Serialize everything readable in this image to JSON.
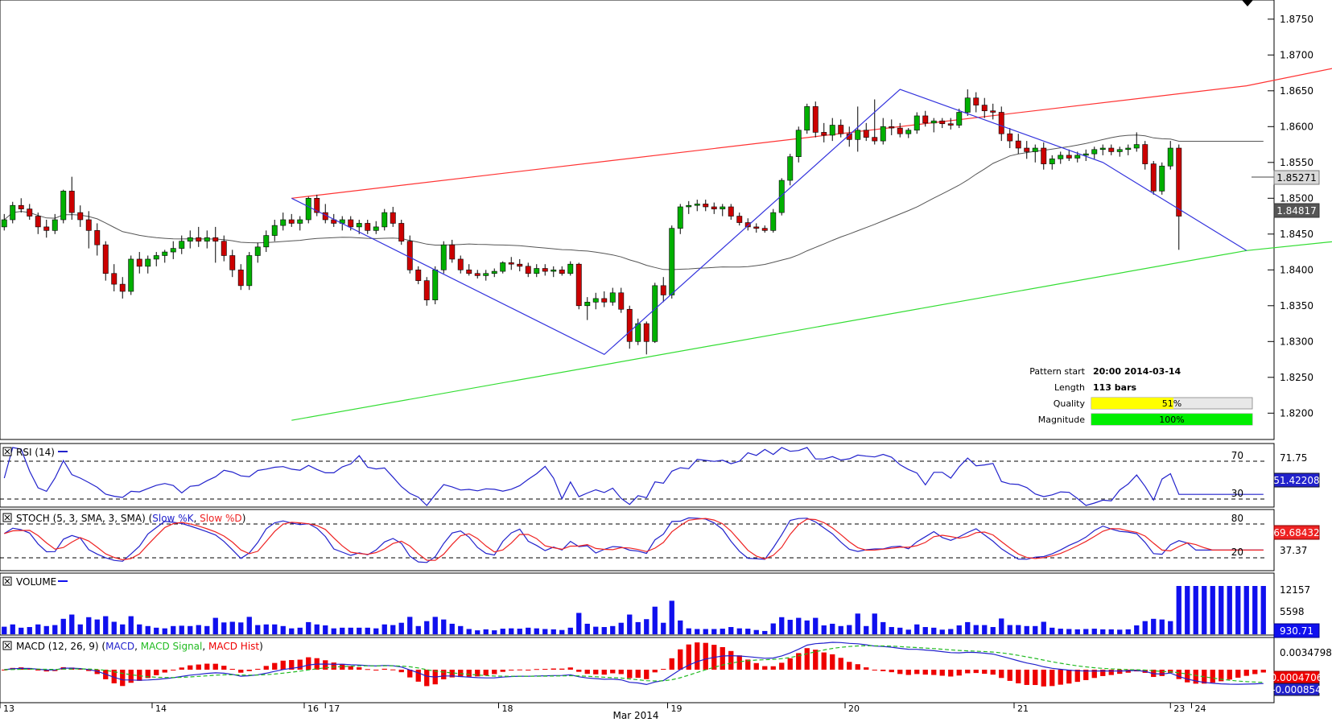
{
  "colors": {
    "up": "#00b000",
    "down": "#cc0000",
    "channel_upper": "#ff3333",
    "channel_lower": "#33dd33",
    "pattern": "#3333dd",
    "ma": "#555555",
    "rsi": "#2222cc",
    "stoch_k": "#2222cc",
    "stoch_d": "#ee2222",
    "volume": "#1010ee",
    "macd": "#2222cc",
    "macd_signal": "#22bb22",
    "macd_hist": "#ee0000",
    "quality_fill": "#ffff00",
    "magnitude_fill": "#00ee00"
  },
  "main": {
    "price_ticks": [
      "1.8750",
      "1.8700",
      "1.8650",
      "1.8600",
      "1.8550",
      "1.8500",
      "1.8450",
      "1.8400",
      "1.8350",
      "1.8300",
      "1.8250",
      "1.8200"
    ],
    "current_price": "1.85271",
    "ma_value": "1.84817",
    "channel": {
      "upper": [
        [
          0,
          1.85
        ],
        [
          113,
          1.8657
        ],
        [
          150,
          1.8745
        ]
      ],
      "lower": [
        [
          0,
          1.819
        ],
        [
          113,
          1.8427
        ],
        [
          150,
          1.8472
        ]
      ]
    },
    "pattern_points": [
      [
        0,
        1.85
      ],
      [
        37,
        1.8282
      ],
      [
        72,
        1.8652
      ],
      [
        96,
        1.855
      ],
      [
        113,
        1.8427
      ]
    ],
    "info": {
      "pattern_start_label": "Pattern start",
      "pattern_start_value": "20:00 2014-03-14",
      "length_label": "Length",
      "length_value": "113 bars",
      "quality_label": "Quality",
      "quality_value": "51%",
      "quality_pct": 51,
      "magnitude_label": "Magnitude",
      "magnitude_value": "100%",
      "magnitude_pct": 100
    }
  },
  "x_axis": {
    "labels": [
      {
        "bar": 0,
        "text": "13"
      },
      {
        "bar": 18,
        "text": "14"
      },
      {
        "bar": 36,
        "text": "16"
      },
      {
        "bar": 38.5,
        "text": "17"
      },
      {
        "bar": 59,
        "text": "18"
      },
      {
        "bar": 79,
        "text": "19"
      },
      {
        "bar": 100,
        "text": "20"
      },
      {
        "bar": 120,
        "text": "21"
      },
      {
        "bar": 138.5,
        "text": "23"
      },
      {
        "bar": 141,
        "text": "24"
      }
    ],
    "month_label": "Mar 2014"
  },
  "rsi": {
    "title": "RSI (14)",
    "level_high": "70",
    "level_low": "30",
    "tick_top": "71.75",
    "current": "51.42208"
  },
  "stoch": {
    "title": "STOCH (5, 3, SMA, 3, SMA)",
    "legend_k": "Slow %K",
    "legend_d": "Slow %D",
    "level_high": "80",
    "level_low": "20",
    "tick_mid": "37.37",
    "current": "69.68432"
  },
  "volume": {
    "title": "VOLUME",
    "tick_high": "12157",
    "tick_mid": "5598",
    "current": "930.71"
  },
  "macd": {
    "title": "MACD (12, 26, 9)",
    "legend_macd": "MACD",
    "legend_signal": "MACD Signal",
    "legend_hist": "MACD Hist",
    "tick_top": "0.0034798",
    "current_hist": "0.0004706",
    "current_macd": "-0.000854"
  },
  "chart_data": {
    "type": "candlestick",
    "title": "",
    "ylim": [
      1.817,
      1.877
    ],
    "bars_total": 150,
    "candles": [
      [
        1.846,
        1.8478,
        1.8455,
        1.847
      ],
      [
        1.847,
        1.8495,
        1.8465,
        1.849
      ],
      [
        1.849,
        1.85,
        1.848,
        1.8485
      ],
      [
        1.8485,
        1.8492,
        1.847,
        1.8475
      ],
      [
        1.8475,
        1.848,
        1.845,
        1.846
      ],
      [
        1.846,
        1.847,
        1.8445,
        1.8455
      ],
      [
        1.8455,
        1.8478,
        1.845,
        1.847
      ],
      [
        1.847,
        1.8512,
        1.8465,
        1.851
      ],
      [
        1.851,
        1.853,
        1.847,
        1.848
      ],
      [
        1.848,
        1.849,
        1.846,
        1.847
      ],
      [
        1.847,
        1.8482,
        1.843,
        1.8455
      ],
      [
        1.8455,
        1.8465,
        1.842,
        1.8435
      ],
      [
        1.8435,
        1.844,
        1.8385,
        1.8395
      ],
      [
        1.8395,
        1.8408,
        1.837,
        1.838
      ],
      [
        1.838,
        1.839,
        1.836,
        1.837
      ],
      [
        1.837,
        1.842,
        1.8365,
        1.8415
      ],
      [
        1.8415,
        1.8425,
        1.8395,
        1.8405
      ],
      [
        1.8405,
        1.842,
        1.8395,
        1.8415
      ],
      [
        1.8415,
        1.8425,
        1.8405,
        1.842
      ],
      [
        1.842,
        1.8428,
        1.841,
        1.8425
      ],
      [
        1.8425,
        1.844,
        1.8415,
        1.843
      ],
      [
        1.843,
        1.8448,
        1.8422,
        1.844
      ],
      [
        1.844,
        1.8455,
        1.843,
        1.8445
      ],
      [
        1.8445,
        1.846,
        1.8432,
        1.844
      ],
      [
        1.844,
        1.8455,
        1.843,
        1.8445
      ],
      [
        1.8445,
        1.846,
        1.841,
        1.844
      ],
      [
        1.844,
        1.8448,
        1.8412,
        1.842
      ],
      [
        1.842,
        1.8428,
        1.839,
        1.84
      ],
      [
        1.84,
        1.8408,
        1.8372,
        1.8378
      ],
      [
        1.8378,
        1.8425,
        1.8372,
        1.842
      ],
      [
        1.842,
        1.8438,
        1.841,
        1.8432
      ],
      [
        1.8432,
        1.8455,
        1.8425,
        1.8448
      ],
      [
        1.8448,
        1.847,
        1.844,
        1.8462
      ],
      [
        1.8462,
        1.848,
        1.8455,
        1.847
      ],
      [
        1.847,
        1.8478,
        1.846,
        1.8465
      ],
      [
        1.8465,
        1.8475,
        1.8455,
        1.847
      ],
      [
        1.847,
        1.8502,
        1.8465,
        1.85
      ],
      [
        1.85,
        1.8505,
        1.8475,
        1.848
      ],
      [
        1.848,
        1.8492,
        1.8465,
        1.847
      ],
      [
        1.847,
        1.8478,
        1.846,
        1.8465
      ],
      [
        1.8465,
        1.8475,
        1.8455,
        1.847
      ],
      [
        1.847,
        1.8475,
        1.8455,
        1.846
      ],
      [
        1.846,
        1.847,
        1.845,
        1.8465
      ],
      [
        1.8465,
        1.847,
        1.845,
        1.8455
      ],
      [
        1.8455,
        1.8468,
        1.845,
        1.846
      ],
      [
        1.846,
        1.8485,
        1.8455,
        1.848
      ],
      [
        1.848,
        1.8488,
        1.846,
        1.8465
      ],
      [
        1.8465,
        1.847,
        1.8435,
        1.844
      ],
      [
        1.844,
        1.8448,
        1.8395,
        1.84
      ],
      [
        1.84,
        1.8405,
        1.838,
        1.8385
      ],
      [
        1.8385,
        1.839,
        1.835,
        1.8358
      ],
      [
        1.8358,
        1.8405,
        1.8352,
        1.84
      ],
      [
        1.84,
        1.844,
        1.8395,
        1.8435
      ],
      [
        1.8435,
        1.8442,
        1.841,
        1.8415
      ],
      [
        1.8415,
        1.842,
        1.8395,
        1.84
      ],
      [
        1.84,
        1.8408,
        1.8392,
        1.8395
      ],
      [
        1.8395,
        1.84,
        1.8388,
        1.8392
      ],
      [
        1.8392,
        1.84,
        1.8385,
        1.8395
      ],
      [
        1.8395,
        1.8402,
        1.839,
        1.8398
      ],
      [
        1.8398,
        1.8412,
        1.8395,
        1.841
      ],
      [
        1.841,
        1.8418,
        1.84,
        1.8408
      ],
      [
        1.8408,
        1.8415,
        1.8398,
        1.8405
      ],
      [
        1.8405,
        1.841,
        1.839,
        1.8395
      ],
      [
        1.8395,
        1.8408,
        1.839,
        1.8402
      ],
      [
        1.8402,
        1.8408,
        1.8392,
        1.8398
      ],
      [
        1.8398,
        1.8405,
        1.839,
        1.84
      ],
      [
        1.84,
        1.8405,
        1.8392,
        1.8395
      ],
      [
        1.8395,
        1.8412,
        1.8392,
        1.8408
      ],
      [
        1.8408,
        1.841,
        1.8345,
        1.835
      ],
      [
        1.835,
        1.8362,
        1.833,
        1.8355
      ],
      [
        1.8355,
        1.8368,
        1.8345,
        1.836
      ],
      [
        1.836,
        1.837,
        1.8348,
        1.8355
      ],
      [
        1.8355,
        1.8375,
        1.835,
        1.8368
      ],
      [
        1.8368,
        1.8375,
        1.834,
        1.8345
      ],
      [
        1.8345,
        1.835,
        1.829,
        1.83
      ],
      [
        1.83,
        1.8332,
        1.8295,
        1.8325
      ],
      [
        1.8325,
        1.8328,
        1.8282,
        1.83
      ],
      [
        1.83,
        1.8382,
        1.8298,
        1.8378
      ],
      [
        1.8378,
        1.839,
        1.8355,
        1.8365
      ],
      [
        1.8365,
        1.8462,
        1.836,
        1.8458
      ],
      [
        1.8458,
        1.8492,
        1.845,
        1.8488
      ],
      [
        1.8488,
        1.8496,
        1.8478,
        1.849
      ],
      [
        1.849,
        1.8498,
        1.8482,
        1.8492
      ],
      [
        1.8492,
        1.8498,
        1.8482,
        1.8488
      ],
      [
        1.8488,
        1.8494,
        1.8478,
        1.8485
      ],
      [
        1.8485,
        1.8492,
        1.8475,
        1.8488
      ],
      [
        1.8488,
        1.8492,
        1.847,
        1.8475
      ],
      [
        1.8475,
        1.848,
        1.8462,
        1.8466
      ],
      [
        1.8466,
        1.8472,
        1.8455,
        1.846
      ],
      [
        1.846,
        1.8465,
        1.8452,
        1.8458
      ],
      [
        1.8458,
        1.8462,
        1.8452,
        1.8455
      ],
      [
        1.8455,
        1.8485,
        1.8452,
        1.848
      ],
      [
        1.848,
        1.8528,
        1.8476,
        1.8525
      ],
      [
        1.8525,
        1.8562,
        1.8518,
        1.8558
      ],
      [
        1.8558,
        1.86,
        1.855,
        1.8595
      ],
      [
        1.8595,
        1.8632,
        1.859,
        1.8628
      ],
      [
        1.8628,
        1.8635,
        1.8585,
        1.8592
      ],
      [
        1.8592,
        1.8605,
        1.8578,
        1.8588
      ],
      [
        1.8588,
        1.8612,
        1.858,
        1.8602
      ],
      [
        1.8602,
        1.861,
        1.8585,
        1.859
      ],
      [
        1.859,
        1.86,
        1.8572,
        1.8582
      ],
      [
        1.8582,
        1.8628,
        1.8565,
        1.8595
      ],
      [
        1.8595,
        1.8605,
        1.858,
        1.8585
      ],
      [
        1.8585,
        1.8638,
        1.8575,
        1.858
      ],
      [
        1.858,
        1.8612,
        1.8575,
        1.86
      ],
      [
        1.86,
        1.861,
        1.8588,
        1.8598
      ],
      [
        1.8598,
        1.8605,
        1.8585,
        1.859
      ],
      [
        1.859,
        1.8598,
        1.8584,
        1.8595
      ],
      [
        1.8595,
        1.862,
        1.859,
        1.8615
      ],
      [
        1.8615,
        1.8622,
        1.86,
        1.8605
      ],
      [
        1.8605,
        1.8612,
        1.8592,
        1.8608
      ],
      [
        1.8608,
        1.8612,
        1.8598,
        1.8604
      ],
      [
        1.8604,
        1.8612,
        1.8596,
        1.8602
      ],
      [
        1.8602,
        1.8625,
        1.8598,
        1.862
      ],
      [
        1.862,
        1.8652,
        1.8615,
        1.864
      ],
      [
        1.864,
        1.8648,
        1.862,
        1.863
      ],
      [
        1.863,
        1.864,
        1.8612,
        1.8622
      ],
      [
        1.8622,
        1.8632,
        1.861,
        1.862
      ],
      [
        1.862,
        1.8628,
        1.858,
        1.859
      ],
      [
        1.859,
        1.8598,
        1.857,
        1.858
      ],
      [
        1.858,
        1.859,
        1.8562,
        1.857
      ],
      [
        1.857,
        1.858,
        1.8555,
        1.8565
      ],
      [
        1.8565,
        1.8575,
        1.855,
        1.857
      ],
      [
        1.857,
        1.8578,
        1.854,
        1.8548
      ],
      [
        1.8548,
        1.856,
        1.854,
        1.8555
      ],
      [
        1.8555,
        1.8565,
        1.8548,
        1.856
      ],
      [
        1.856,
        1.8568,
        1.8552,
        1.8556
      ],
      [
        1.8556,
        1.8565,
        1.855,
        1.856
      ],
      [
        1.856,
        1.8568,
        1.8552,
        1.8562
      ],
      [
        1.8562,
        1.8572,
        1.8555,
        1.8568
      ],
      [
        1.8568,
        1.8575,
        1.856,
        1.857
      ],
      [
        1.857,
        1.8575,
        1.856,
        1.8565
      ],
      [
        1.8565,
        1.8572,
        1.8558,
        1.8568
      ],
      [
        1.8568,
        1.8575,
        1.856,
        1.857
      ],
      [
        1.857,
        1.8592,
        1.8565,
        1.8575
      ],
      [
        1.8575,
        1.858,
        1.854,
        1.8548
      ],
      [
        1.8548,
        1.8552,
        1.8505,
        1.851
      ],
      [
        1.851,
        1.855,
        1.8505,
        1.8545
      ],
      [
        1.8545,
        1.858,
        1.854,
        1.857
      ],
      [
        1.857,
        1.8575,
        1.8428,
        1.8475
      ]
    ]
  }
}
